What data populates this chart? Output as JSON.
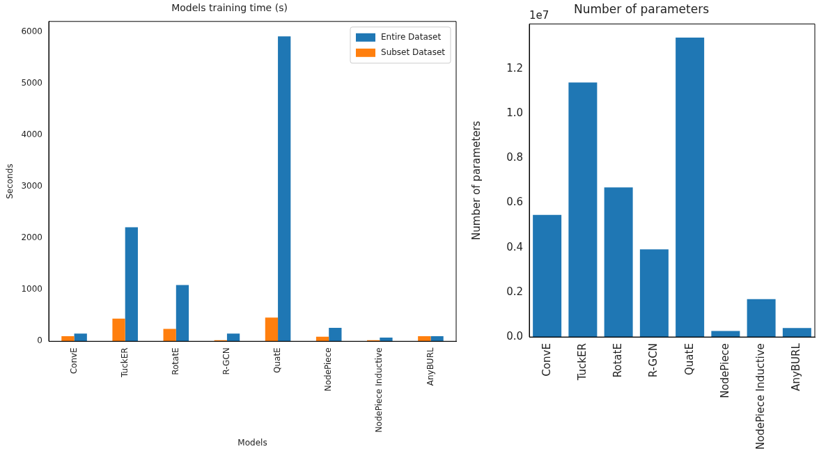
{
  "chart_data": [
    {
      "type": "bar",
      "title": "Models training time (s)",
      "xlabel": "Models",
      "ylabel": "Seconds",
      "categories": [
        "ConvE",
        "TuckER",
        "RotatE",
        "R-GCN",
        "QuatE",
        "NodePiece",
        "NodePiece Inductive",
        "AnyBURL"
      ],
      "series": [
        {
          "name": "Subset Dataset",
          "color": "#ff7f0e",
          "values": [
            100,
            440,
            240,
            20,
            460,
            90,
            20,
            100
          ]
        },
        {
          "name": "Entire Dataset",
          "color": "#1f77b4",
          "values": [
            150,
            2210,
            1090,
            150,
            5910,
            260,
            70,
            100
          ]
        }
      ],
      "ylim": [
        0,
        6200
      ],
      "yticks": [
        0,
        1000,
        2000,
        3000,
        4000,
        5000,
        6000
      ],
      "grid": false,
      "legend": "top right"
    },
    {
      "type": "bar",
      "title": "Number of parameters",
      "ylabel": "Number of parameters",
      "annotations": [
        "1e7"
      ],
      "categories": [
        "ConvE",
        "TuckER",
        "RotatE",
        "R-GCN",
        "QuatE",
        "NodePiece",
        "NodePiece Inductive",
        "AnyBURL"
      ],
      "values": [
        0.546,
        1.138,
        0.669,
        0.392,
        1.339,
        0.027,
        0.169,
        0.04
      ],
      "color": "#1f77b4",
      "ylim": [
        0,
        1.4
      ],
      "yticks": [
        {
          "value": 0,
          "label": "0.0"
        },
        0.2,
        0.4,
        0.6,
        0.8,
        {
          "value": 1,
          "label": "1.0"
        },
        1.2
      ],
      "grid": false
    }
  ]
}
